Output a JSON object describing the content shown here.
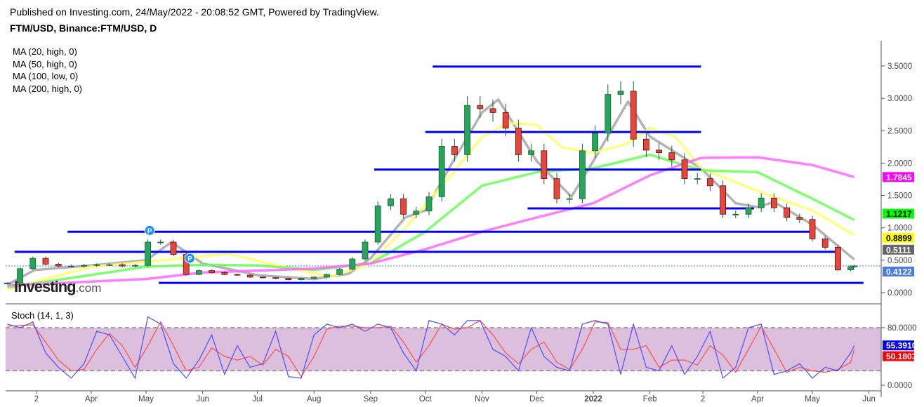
{
  "header": {
    "published": "Published on Investing.com, 24/May/2022 - 20:08:52 GMT, Powered by TradingView.",
    "symbol": "FTM/USD, Binance:FTM/USD, D"
  },
  "legend": [
    "MA (20, high, 0)",
    "MA (50, high, 0)",
    "MA (100, low, 0)",
    "MA (200, high, 0)"
  ],
  "logo": {
    "brand": "Investing",
    "suffix": ".com"
  },
  "stoch_title": "Stoch (14, 1, 3)",
  "colors": {
    "up": "#26a65b",
    "down": "#e8453c",
    "ma20": "#a6a6a6",
    "ma50": "#ffff66",
    "ma100": "#66ff55",
    "ma200": "#ff66ff",
    "lines": "#0000ff",
    "stoch_k": "#4d4dff",
    "stoch_d": "#ff4d4d",
    "stoch_band": "#dcbfdd",
    "last_price": "#4d7be6"
  },
  "chart_data": [
    {
      "type": "candlestick",
      "title": "FTM/USD, Binance:FTM/USD, D",
      "ylim": [
        0,
        3.7
      ],
      "y_ticks": [
        "0.0000",
        "0.5000",
        "1.0000",
        "1.5000",
        "2.0000",
        "2.5000",
        "3.0000",
        "3.5000"
      ],
      "y_tick_values": [
        0,
        0.5,
        1.0,
        1.5,
        2.0,
        2.5,
        3.0,
        3.5
      ],
      "x_ticks": [
        {
          "label": "2",
          "date": "2021-03-02"
        },
        {
          "label": "Apr",
          "date": "2021-04-01"
        },
        {
          "label": "May",
          "date": "2021-05-01"
        },
        {
          "label": "Jun",
          "date": "2021-06-01"
        },
        {
          "label": "Jul",
          "date": "2021-07-01"
        },
        {
          "label": "Aug",
          "date": "2021-08-01"
        },
        {
          "label": "Sep",
          "date": "2021-09-01"
        },
        {
          "label": "Oct",
          "date": "2021-10-01"
        },
        {
          "label": "Nov",
          "date": "2021-11-01"
        },
        {
          "label": "Dec",
          "date": "2021-12-01"
        },
        {
          "label": "2022",
          "date": "2022-01-01",
          "bold": true
        },
        {
          "label": "Feb",
          "date": "2022-02-01"
        },
        {
          "label": "2",
          "date": "2022-03-02"
        },
        {
          "label": "Apr",
          "date": "2022-04-01"
        },
        {
          "label": "May",
          "date": "2022-05-01"
        },
        {
          "label": "Jun",
          "date": "2022-06-01"
        }
      ],
      "dates": [
        "2021-02-14",
        "2021-02-21",
        "2021-02-28",
        "2021-03-07",
        "2021-03-14",
        "2021-03-21",
        "2021-03-28",
        "2021-04-04",
        "2021-04-11",
        "2021-04-18",
        "2021-04-25",
        "2021-05-02",
        "2021-05-09",
        "2021-05-16",
        "2021-05-23",
        "2021-05-30",
        "2021-06-06",
        "2021-06-13",
        "2021-06-20",
        "2021-06-27",
        "2021-07-04",
        "2021-07-11",
        "2021-07-18",
        "2021-07-25",
        "2021-08-01",
        "2021-08-08",
        "2021-08-15",
        "2021-08-22",
        "2021-08-29",
        "2021-09-05",
        "2021-09-12",
        "2021-09-19",
        "2021-09-26",
        "2021-10-03",
        "2021-10-10",
        "2021-10-17",
        "2021-10-24",
        "2021-10-31",
        "2021-11-07",
        "2021-11-14",
        "2021-11-21",
        "2021-11-28",
        "2021-12-05",
        "2021-12-12",
        "2021-12-19",
        "2021-12-26",
        "2022-01-02",
        "2022-01-09",
        "2022-01-16",
        "2022-01-23",
        "2022-01-30",
        "2022-02-06",
        "2022-02-13",
        "2022-02-20",
        "2022-02-27",
        "2022-03-06",
        "2022-03-13",
        "2022-03-20",
        "2022-03-27",
        "2022-04-03",
        "2022-04-10",
        "2022-04-17",
        "2022-04-24",
        "2022-05-01",
        "2022-05-08",
        "2022-05-15",
        "2022-05-22",
        "2022-05-24"
      ],
      "close": [
        0.15,
        0.37,
        0.53,
        0.44,
        0.41,
        0.41,
        0.42,
        0.43,
        0.43,
        0.41,
        0.42,
        0.78,
        0.78,
        0.59,
        0.28,
        0.34,
        0.31,
        0.28,
        0.27,
        0.24,
        0.23,
        0.22,
        0.2,
        0.22,
        0.24,
        0.28,
        0.36,
        0.52,
        0.78,
        1.34,
        1.45,
        1.21,
        1.26,
        1.48,
        2.26,
        2.13,
        2.89,
        2.84,
        2.78,
        2.54,
        2.13,
        2.19,
        1.76,
        1.45,
        1.45,
        2.19,
        2.46,
        3.06,
        3.11,
        2.37,
        2.2,
        2.16,
        2.05,
        1.76,
        1.76,
        1.65,
        1.21,
        1.21,
        1.31,
        1.46,
        1.31,
        1.16,
        1.13,
        0.83,
        0.7,
        0.35,
        0.4,
        0.4122
      ],
      "moving_averages": [
        {
          "name": "MA (20, high, 0)",
          "color_key": "ma20",
          "last_value": "0.5111",
          "points": [
            [
              "2021-02-14",
              0.12
            ],
            [
              "2021-03-01",
              0.35
            ],
            [
              "2021-04-01",
              0.42
            ],
            [
              "2021-05-01",
              0.5
            ],
            [
              "2021-05-15",
              0.78
            ],
            [
              "2021-06-01",
              0.45
            ],
            [
              "2021-07-01",
              0.27
            ],
            [
              "2021-08-01",
              0.21
            ],
            [
              "2021-08-20",
              0.29
            ],
            [
              "2021-09-01",
              0.53
            ],
            [
              "2021-09-20",
              1.16
            ],
            [
              "2021-10-01",
              1.27
            ],
            [
              "2021-10-15",
              1.97
            ],
            [
              "2021-11-01",
              2.78
            ],
            [
              "2021-11-10",
              2.98
            ],
            [
              "2021-12-01",
              2.03
            ],
            [
              "2021-12-20",
              1.48
            ],
            [
              "2022-01-01",
              2.03
            ],
            [
              "2022-01-20",
              2.95
            ],
            [
              "2022-02-01",
              2.41
            ],
            [
              "2022-03-01",
              1.92
            ],
            [
              "2022-03-20",
              1.38
            ],
            [
              "2022-04-01",
              1.32
            ],
            [
              "2022-04-10",
              1.4
            ],
            [
              "2022-05-01",
              1.05
            ],
            [
              "2022-05-24",
              0.5111
            ]
          ]
        },
        {
          "name": "MA (50, high, 0)",
          "color_key": "ma50",
          "last_value": "0.8899",
          "points": [
            [
              "2021-02-14",
              0.05
            ],
            [
              "2021-04-01",
              0.4
            ],
            [
              "2021-05-15",
              0.51
            ],
            [
              "2021-06-15",
              0.6
            ],
            [
              "2021-07-15",
              0.4
            ],
            [
              "2021-08-10",
              0.24
            ],
            [
              "2021-09-01",
              0.45
            ],
            [
              "2021-09-20",
              1.0
            ],
            [
              "2021-10-15",
              1.81
            ],
            [
              "2021-11-01",
              2.4
            ],
            [
              "2021-11-15",
              2.62
            ],
            [
              "2021-12-01",
              2.59
            ],
            [
              "2021-12-15",
              2.24
            ],
            [
              "2022-01-01",
              2.16
            ],
            [
              "2022-01-20",
              2.3
            ],
            [
              "2022-02-01",
              2.54
            ],
            [
              "2022-02-15",
              2.41
            ],
            [
              "2022-03-01",
              1.92
            ],
            [
              "2022-04-01",
              1.57
            ],
            [
              "2022-05-01",
              1.27
            ],
            [
              "2022-05-24",
              0.8899
            ]
          ]
        },
        {
          "name": "MA (100, low, 0)",
          "color_key": "ma100",
          "last_value": "1.1217",
          "points": [
            [
              "2021-02-14",
              0.08
            ],
            [
              "2021-05-01",
              0.4
            ],
            [
              "2021-06-01",
              0.43
            ],
            [
              "2021-07-01",
              0.42
            ],
            [
              "2021-08-01",
              0.35
            ],
            [
              "2021-09-01",
              0.45
            ],
            [
              "2021-10-01",
              0.94
            ],
            [
              "2021-11-01",
              1.65
            ],
            [
              "2021-12-01",
              1.86
            ],
            [
              "2022-01-01",
              1.92
            ],
            [
              "2022-02-01",
              2.13
            ],
            [
              "2022-03-01",
              1.89
            ],
            [
              "2022-04-01",
              1.86
            ],
            [
              "2022-05-01",
              1.45
            ],
            [
              "2022-05-24",
              1.1217
            ]
          ]
        },
        {
          "name": "MA (200, high, 0)",
          "color_key": "ma200",
          "last_value": "1.7845",
          "points": [
            [
              "2021-02-14",
              0.11
            ],
            [
              "2021-05-01",
              0.21
            ],
            [
              "2021-06-01",
              0.31
            ],
            [
              "2021-08-01",
              0.37
            ],
            [
              "2021-09-01",
              0.45
            ],
            [
              "2021-10-01",
              0.67
            ],
            [
              "2021-11-01",
              0.94
            ],
            [
              "2021-12-01",
              1.16
            ],
            [
              "2022-01-01",
              1.38
            ],
            [
              "2022-02-01",
              1.81
            ],
            [
              "2022-03-01",
              2.08
            ],
            [
              "2022-04-01",
              2.09
            ],
            [
              "2022-05-01",
              1.97
            ],
            [
              "2022-05-24",
              1.7845
            ]
          ]
        }
      ],
      "last_price": "0.4122",
      "horizontal_lines": [
        {
          "price": 3.49,
          "from": "2021-10-05",
          "to": "2022-03-01"
        },
        {
          "price": 2.48,
          "from": "2021-10-01",
          "to": "2022-03-01"
        },
        {
          "price": 1.9,
          "from": "2021-09-03",
          "to": "2022-03-01"
        },
        {
          "price": 1.3,
          "from": "2021-11-26",
          "to": "2022-03-30"
        },
        {
          "price": 0.94,
          "from": "2021-03-19",
          "to": "2022-05-01"
        },
        {
          "price": 0.63,
          "from": "2021-02-18",
          "to": "2022-05-15"
        },
        {
          "price": 0.15,
          "from": "2021-05-08",
          "to": "2022-05-29"
        }
      ],
      "pivot_markers": [
        {
          "label": "P",
          "date": "2021-05-03",
          "price": 0.96
        },
        {
          "label": "P",
          "date": "2021-05-25",
          "price": 0.53
        }
      ]
    },
    {
      "type": "line",
      "title": "Stoch (14, 1, 3)",
      "ylim": [
        -5,
        100
      ],
      "y_ticks": [
        "0.0000",
        "80.0000"
      ],
      "y_tick_values": [
        0,
        80
      ],
      "band": [
        20,
        80
      ],
      "series": [
        {
          "name": "%K",
          "last_value": "55.3910",
          "values": [
            85,
            80,
            88,
            45,
            25,
            10,
            30,
            75,
            70,
            40,
            10,
            95,
            85,
            30,
            10,
            35,
            70,
            15,
            55,
            25,
            30,
            75,
            12,
            10,
            70,
            85,
            80,
            85,
            75,
            85,
            80,
            45,
            20,
            90,
            85,
            70,
            90,
            90,
            50,
            40,
            20,
            80,
            40,
            25,
            20,
            85,
            90,
            85,
            15,
            85,
            25,
            20,
            55,
            15,
            40,
            75,
            10,
            25,
            80,
            85,
            15,
            20,
            30,
            10,
            25,
            20,
            45,
            55.391
          ]
        },
        {
          "name": "%D",
          "last_value": "50.1803",
          "values": [
            82,
            83,
            84,
            60,
            35,
            20,
            22,
            50,
            72,
            55,
            25,
            55,
            88,
            55,
            20,
            25,
            52,
            40,
            35,
            40,
            28,
            50,
            40,
            12,
            40,
            78,
            82,
            82,
            80,
            80,
            82,
            60,
            32,
            55,
            85,
            78,
            80,
            90,
            70,
            45,
            30,
            50,
            60,
            32,
            22,
            50,
            88,
            87,
            50,
            50,
            55,
            25,
            35,
            35,
            28,
            55,
            42,
            18,
            50,
            82,
            50,
            18,
            25,
            20,
            18,
            22,
            32,
            50.1803
          ]
        }
      ]
    }
  ]
}
